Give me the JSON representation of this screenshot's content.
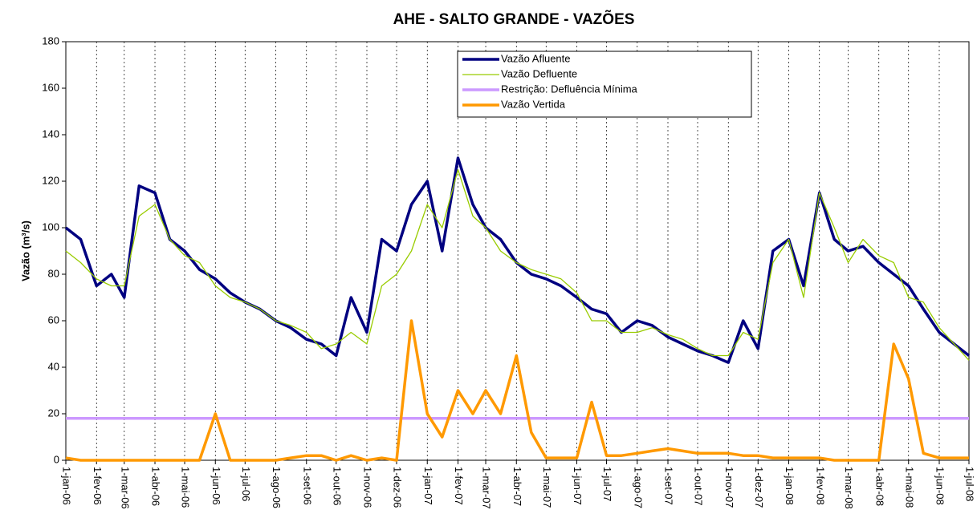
{
  "chart_data": {
    "type": "line",
    "title": "AHE - SALTO GRANDE - VAZÕES",
    "y_label": "Vazão (m³/s)",
    "x": [
      "2006-01-01",
      "2006-01-16",
      "2006-02-01",
      "2006-02-16",
      "2006-03-01",
      "2006-03-16",
      "2006-04-01",
      "2006-04-16",
      "2006-05-01",
      "2006-05-16",
      "2006-06-01",
      "2006-06-16",
      "2006-07-01",
      "2006-07-16",
      "2006-08-01",
      "2006-08-16",
      "2006-09-01",
      "2006-09-16",
      "2006-10-01",
      "2006-10-16",
      "2006-11-01",
      "2006-11-16",
      "2006-12-01",
      "2006-12-16",
      "2007-01-01",
      "2007-01-16",
      "2007-02-01",
      "2007-02-16",
      "2007-03-01",
      "2007-03-16",
      "2007-04-01",
      "2007-04-16",
      "2007-05-01",
      "2007-05-16",
      "2007-06-01",
      "2007-06-16",
      "2007-07-01",
      "2007-07-16",
      "2007-08-01",
      "2007-08-16",
      "2007-09-01",
      "2007-09-16",
      "2007-10-01",
      "2007-10-16",
      "2007-11-01",
      "2007-11-16",
      "2007-12-01",
      "2007-12-16",
      "2008-01-01",
      "2008-01-16",
      "2008-02-01",
      "2008-02-16",
      "2008-03-01",
      "2008-03-16",
      "2008-04-01",
      "2008-04-16",
      "2008-05-01",
      "2008-05-16",
      "2008-06-01",
      "2008-06-16",
      "2008-07-01"
    ],
    "series": [
      {
        "name": "Vazão Afluente",
        "color": "#000080",
        "width": 3.5,
        "values": [
          100,
          95,
          75,
          80,
          70,
          118,
          115,
          95,
          90,
          82,
          78,
          72,
          68,
          65,
          60,
          57,
          52,
          50,
          45,
          70,
          55,
          95,
          90,
          110,
          120,
          90,
          130,
          110,
          100,
          95,
          85,
          80,
          78,
          75,
          70,
          65,
          63,
          55,
          60,
          58,
          53,
          50,
          47,
          45,
          42,
          60,
          48,
          90,
          95,
          75,
          115,
          95,
          90,
          92,
          85,
          80,
          75,
          65,
          55,
          50,
          45
        ]
      },
      {
        "name": "Vazão Defluente",
        "color": "#99cc00",
        "width": 1.3,
        "values": [
          90,
          85,
          78,
          75,
          75,
          105,
          110,
          95,
          88,
          85,
          75,
          70,
          68,
          65,
          60,
          58,
          55,
          48,
          50,
          55,
          50,
          75,
          80,
          90,
          110,
          100,
          125,
          105,
          100,
          90,
          85,
          82,
          80,
          78,
          72,
          60,
          60,
          55,
          55,
          57,
          54,
          52,
          48,
          45,
          45,
          55,
          52,
          85,
          95,
          70,
          115,
          100,
          85,
          95,
          88,
          85,
          70,
          68,
          57,
          50,
          43
        ]
      },
      {
        "name": "Restrição: Defluência Mínima",
        "color": "#cc99ff",
        "width": 3.5,
        "values": [
          18,
          18,
          18,
          18,
          18,
          18,
          18,
          18,
          18,
          18,
          18,
          18,
          18,
          18,
          18,
          18,
          18,
          18,
          18,
          18,
          18,
          18,
          18,
          18,
          18,
          18,
          18,
          18,
          18,
          18,
          18,
          18,
          18,
          18,
          18,
          18,
          18,
          18,
          18,
          18,
          18,
          18,
          18,
          18,
          18,
          18,
          18,
          18,
          18,
          18,
          18,
          18,
          18,
          18,
          18,
          18,
          18,
          18,
          18,
          18,
          18
        ]
      },
      {
        "name": "Vazão Vertida",
        "color": "#ff9900",
        "width": 3.5,
        "values": [
          1,
          0,
          0,
          0,
          0,
          0,
          0,
          0,
          0,
          0,
          20,
          0,
          0,
          0,
          0,
          1,
          2,
          2,
          0,
          2,
          0,
          1,
          0,
          60,
          20,
          10,
          30,
          20,
          30,
          20,
          45,
          12,
          1,
          1,
          1,
          25,
          2,
          2,
          3,
          4,
          5,
          4,
          3,
          3,
          3,
          2,
          2,
          1,
          1,
          1,
          1,
          0,
          0,
          0,
          0,
          50,
          35,
          3,
          1,
          1,
          1
        ]
      }
    ],
    "xlim": [
      "2006-01-01",
      "2008-07-01"
    ],
    "xticks": [
      {
        "value": "2006-01-01",
        "label": "1-jan-06"
      },
      {
        "value": "2006-02-01",
        "label": "1-fev-06"
      },
      {
        "value": "2006-03-01",
        "label": "1-mar-06"
      },
      {
        "value": "2006-04-01",
        "label": "1-abr-06"
      },
      {
        "value": "2006-05-01",
        "label": "1-mai-06"
      },
      {
        "value": "2006-06-01",
        "label": "1-jun-06"
      },
      {
        "value": "2006-07-01",
        "label": "1-jul-06"
      },
      {
        "value": "2006-08-01",
        "label": "1-ago-06"
      },
      {
        "value": "2006-09-01",
        "label": "1-set-06"
      },
      {
        "value": "2006-10-01",
        "label": "1-out-06"
      },
      {
        "value": "2006-11-01",
        "label": "1-nov-06"
      },
      {
        "value": "2006-12-01",
        "label": "1-dez-06"
      },
      {
        "value": "2007-01-01",
        "label": "1-jan-07"
      },
      {
        "value": "2007-02-01",
        "label": "1-fev-07"
      },
      {
        "value": "2007-03-01",
        "label": "1-mar-07"
      },
      {
        "value": "2007-04-01",
        "label": "1-abr-07"
      },
      {
        "value": "2007-05-01",
        "label": "1-mai-07"
      },
      {
        "value": "2007-06-01",
        "label": "1-jun-07"
      },
      {
        "value": "2007-07-01",
        "label": "1-jul-07"
      },
      {
        "value": "2007-08-01",
        "label": "1-ago-07"
      },
      {
        "value": "2007-09-01",
        "label": "1-set-07"
      },
      {
        "value": "2007-10-01",
        "label": "1-out-07"
      },
      {
        "value": "2007-11-01",
        "label": "1-nov-07"
      },
      {
        "value": "2007-12-01",
        "label": "1-dez-07"
      },
      {
        "value": "2008-01-01",
        "label": "1-jan-08"
      },
      {
        "value": "2008-02-01",
        "label": "1-fev-08"
      },
      {
        "value": "2008-03-01",
        "label": "1-mar-08"
      },
      {
        "value": "2008-04-01",
        "label": "1-abr-08"
      },
      {
        "value": "2008-05-01",
        "label": "1-mai-08"
      },
      {
        "value": "2008-06-01",
        "label": "1-jun-08"
      },
      {
        "value": "2008-07-01",
        "label": "1-jul-08"
      }
    ],
    "ylim": [
      0,
      180
    ],
    "yticks": [
      0,
      20,
      40,
      60,
      80,
      100,
      120,
      140,
      160,
      180
    ],
    "grid": "vertical"
  }
}
